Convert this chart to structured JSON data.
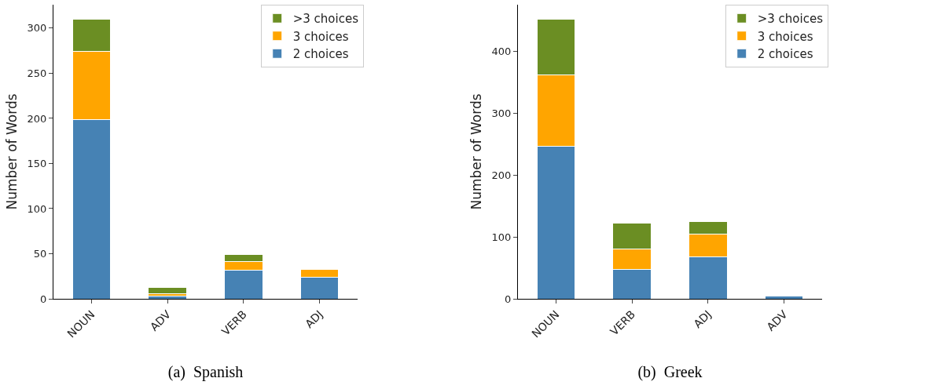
{
  "chart_data": [
    {
      "type": "bar",
      "title": "(a)  Spanish",
      "ylabel": "Number of Words",
      "categories": [
        "NOUN",
        "ADV",
        "VERB",
        "ADJ"
      ],
      "stacked": true,
      "legend": "top right",
      "grid": false,
      "ylim": [
        0,
        326
      ],
      "yticks": [
        0,
        50,
        100,
        150,
        200,
        250,
        300
      ],
      "series": [
        {
          "name": "2 choices",
          "color": "#4682b4",
          "values": [
            199,
            3,
            32,
            24
          ]
        },
        {
          "name": "3 choices",
          "color": "#ffa500",
          "values": [
            75,
            3,
            9,
            9
          ]
        },
        {
          "name": ">3 choices",
          "color": "#6b8e23",
          "values": [
            36,
            7,
            8,
            0
          ]
        }
      ]
    },
    {
      "type": "bar",
      "title": "(b)  Greek",
      "ylabel": "Number of Words",
      "categories": [
        "NOUN",
        "VERB",
        "ADJ",
        "ADV"
      ],
      "stacked": true,
      "legend": "top right",
      "grid": false,
      "ylim": [
        0,
        475
      ],
      "yticks": [
        0,
        100,
        200,
        300,
        400
      ],
      "series": [
        {
          "name": "2 choices",
          "color": "#4682b4",
          "values": [
            246,
            48,
            68,
            4
          ]
        },
        {
          "name": "3 choices",
          "color": "#ffa500",
          "values": [
            116,
            33,
            36,
            0
          ]
        },
        {
          "name": ">3 choices",
          "color": "#6b8e23",
          "values": [
            89,
            41,
            21,
            0
          ]
        }
      ]
    }
  ]
}
